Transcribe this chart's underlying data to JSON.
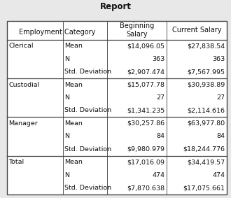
{
  "title": "Report",
  "rows": [
    {
      "category": "Clerical",
      "stat": "Mean",
      "beg_sal": "$14,096.05",
      "cur_sal": "$27,838.54"
    },
    {
      "category": "",
      "stat": "N",
      "beg_sal": "363",
      "cur_sal": "363"
    },
    {
      "category": "",
      "stat": "Std. Deviation",
      "beg_sal": "$2,907.474",
      "cur_sal": "$7,567.995"
    },
    {
      "category": "Custodial",
      "stat": "Mean",
      "beg_sal": "$15,077.78",
      "cur_sal": "$30,938.89"
    },
    {
      "category": "",
      "stat": "N",
      "beg_sal": "27",
      "cur_sal": "27"
    },
    {
      "category": "",
      "stat": "Std. Deviation",
      "beg_sal": "$1,341.235",
      "cur_sal": "$2,114.616"
    },
    {
      "category": "Manager",
      "stat": "Mean",
      "beg_sal": "$30,257.86",
      "cur_sal": "$63,977.80"
    },
    {
      "category": "",
      "stat": "N",
      "beg_sal": "84",
      "cur_sal": "84"
    },
    {
      "category": "",
      "stat": "Std. Deviation",
      "beg_sal": "$9,980.979",
      "cur_sal": "$18,244.776"
    },
    {
      "category": "Total",
      "stat": "Mean",
      "beg_sal": "$17,016.09",
      "cur_sal": "$34,419.57"
    },
    {
      "category": "",
      "stat": "N",
      "beg_sal": "474",
      "cur_sal": "474"
    },
    {
      "category": "",
      "stat": "Std. Deviation",
      "beg_sal": "$7,870.638",
      "cur_sal": "$17,075.661"
    }
  ],
  "group_boundaries": [
    0,
    3,
    6,
    9,
    12
  ],
  "bg_color": "#e8e8e8",
  "table_bg": "#ffffff",
  "title_fontsize": 8.5,
  "cell_fontsize": 6.8,
  "header_fontsize": 7.0
}
